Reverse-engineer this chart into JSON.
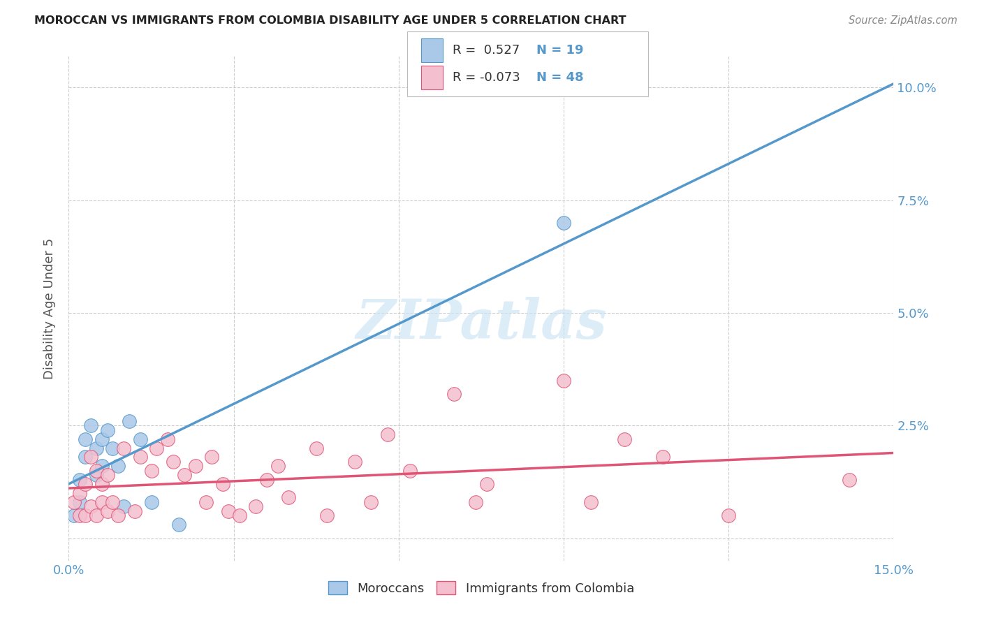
{
  "title": "MOROCCAN VS IMMIGRANTS FROM COLOMBIA DISABILITY AGE UNDER 5 CORRELATION CHART",
  "source": "Source: ZipAtlas.com",
  "ylabel": "Disability Age Under 5",
  "x_min": 0.0,
  "x_max": 0.15,
  "y_min": -0.005,
  "y_max": 0.107,
  "y_ticks": [
    0.0,
    0.025,
    0.05,
    0.075,
    0.1
  ],
  "y_tick_labels_right": [
    "",
    "2.5%",
    "5.0%",
    "7.5%",
    "10.0%"
  ],
  "x_ticks": [
    0.0,
    0.03,
    0.06,
    0.09,
    0.12,
    0.15
  ],
  "x_tick_labels": [
    "0.0%",
    "",
    "",
    "",
    "",
    "15.0%"
  ],
  "moroccan_color": "#aac8e8",
  "moroccan_line_color": "#5599cc",
  "colombia_color": "#f4bfcf",
  "colombia_line_color": "#e05575",
  "legend_R_moroccan": "R =  0.527",
  "legend_N_moroccan": "N = 19",
  "legend_R_colombia": "R = -0.073",
  "legend_N_colombia": "N = 48",
  "moroccan_x": [
    0.001,
    0.002,
    0.002,
    0.003,
    0.003,
    0.004,
    0.005,
    0.005,
    0.006,
    0.006,
    0.007,
    0.008,
    0.009,
    0.01,
    0.011,
    0.013,
    0.015,
    0.02,
    0.09
  ],
  "moroccan_y": [
    0.005,
    0.008,
    0.013,
    0.018,
    0.022,
    0.025,
    0.014,
    0.02,
    0.022,
    0.016,
    0.024,
    0.02,
    0.016,
    0.007,
    0.026,
    0.022,
    0.008,
    0.003,
    0.07
  ],
  "colombia_x": [
    0.001,
    0.002,
    0.002,
    0.003,
    0.003,
    0.004,
    0.004,
    0.005,
    0.005,
    0.006,
    0.006,
    0.007,
    0.007,
    0.008,
    0.009,
    0.01,
    0.012,
    0.013,
    0.015,
    0.016,
    0.018,
    0.019,
    0.021,
    0.023,
    0.025,
    0.026,
    0.028,
    0.029,
    0.031,
    0.034,
    0.036,
    0.038,
    0.04,
    0.045,
    0.047,
    0.052,
    0.055,
    0.058,
    0.062,
    0.07,
    0.074,
    0.076,
    0.09,
    0.095,
    0.101,
    0.108,
    0.12,
    0.142
  ],
  "colombia_y": [
    0.008,
    0.005,
    0.01,
    0.005,
    0.012,
    0.007,
    0.018,
    0.005,
    0.015,
    0.008,
    0.012,
    0.006,
    0.014,
    0.008,
    0.005,
    0.02,
    0.006,
    0.018,
    0.015,
    0.02,
    0.022,
    0.017,
    0.014,
    0.016,
    0.008,
    0.018,
    0.012,
    0.006,
    0.005,
    0.007,
    0.013,
    0.016,
    0.009,
    0.02,
    0.005,
    0.017,
    0.008,
    0.023,
    0.015,
    0.032,
    0.008,
    0.012,
    0.035,
    0.008,
    0.022,
    0.018,
    0.005,
    0.013
  ],
  "watermark": "ZIPatlas",
  "background_color": "#ffffff",
  "grid_color": "#cccccc"
}
